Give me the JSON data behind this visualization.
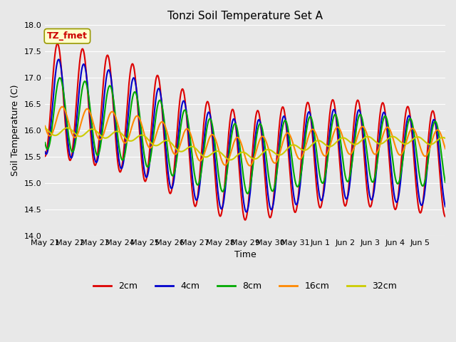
{
  "title": "Tonzi Soil Temperature Set A",
  "xlabel": "Time",
  "ylabel": "Soil Temperature (C)",
  "ylim": [
    14.0,
    18.0
  ],
  "yticks": [
    14.0,
    14.5,
    15.0,
    15.5,
    16.0,
    16.5,
    17.0,
    17.5,
    18.0
  ],
  "xtick_labels": [
    "May 21",
    "May 22",
    "May 23",
    "May 24",
    "May 25",
    "May 26",
    "May 27",
    "May 28",
    "May 29",
    "May 30",
    "May 31",
    "Jun 1",
    "Jun 2",
    "Jun 3",
    "Jun 4",
    "Jun 5"
  ],
  "colors": {
    "2cm": "#dd0000",
    "4cm": "#0000cc",
    "8cm": "#00aa00",
    "16cm": "#ff8800",
    "32cm": "#cccc00"
  },
  "annotation_text": "TZ_fmet",
  "annotation_color": "#cc0000",
  "annotation_bg": "#ffffcc",
  "bg_color": "#e8e8e8",
  "legend_items": [
    "2cm",
    "4cm",
    "8cm",
    "16cm",
    "32cm"
  ]
}
